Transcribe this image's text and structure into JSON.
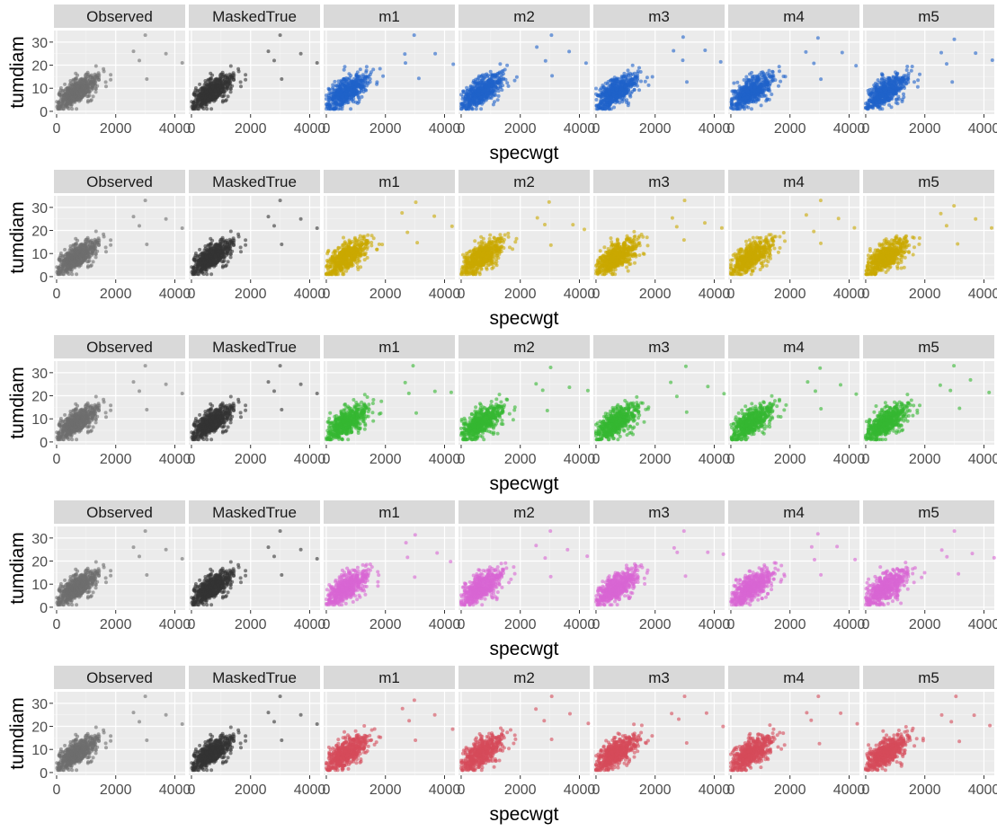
{
  "figure": {
    "rows": [
      {
        "color": "#1f63c9"
      },
      {
        "color": "#c9a800"
      },
      {
        "color": "#36b832"
      },
      {
        "color": "#d966d4"
      },
      {
        "color": "#d54b5a"
      }
    ]
  },
  "chart_data": {
    "type": "scatter",
    "facets": [
      "Observed",
      "MaskedTrue",
      "m1",
      "m2",
      "m3",
      "m4",
      "m5"
    ],
    "facet_colors": {
      "Observed": "#6e6e6e",
      "MaskedTrue": "#333333"
    },
    "xlabel": "specwgt",
    "ylabel": "tumdiam",
    "xlim": [
      -90,
      4350
    ],
    "ylim": [
      -1.2,
      35
    ],
    "x_ticks": [
      0,
      2000,
      4000
    ],
    "x_tick_labels": [
      "0",
      "2000",
      "4000"
    ],
    "y_ticks": [
      0,
      10,
      20,
      30
    ],
    "y_tick_labels": [
      "0",
      "10",
      "20",
      "30"
    ],
    "grid": true,
    "point_cloud": {
      "description_free_summary": "bulk",
      "x_range": [
        0,
        2200
      ],
      "y_range": [
        1,
        27
      ],
      "outliers": [
        {
          "x": 2600,
          "y": 26
        },
        {
          "x": 2800,
          "y": 22
        },
        {
          "x": 3000,
          "y": 33
        },
        {
          "x": 3050,
          "y": 14
        },
        {
          "x": 3700,
          "y": 25
        },
        {
          "x": 4250,
          "y": 21
        }
      ]
    }
  }
}
